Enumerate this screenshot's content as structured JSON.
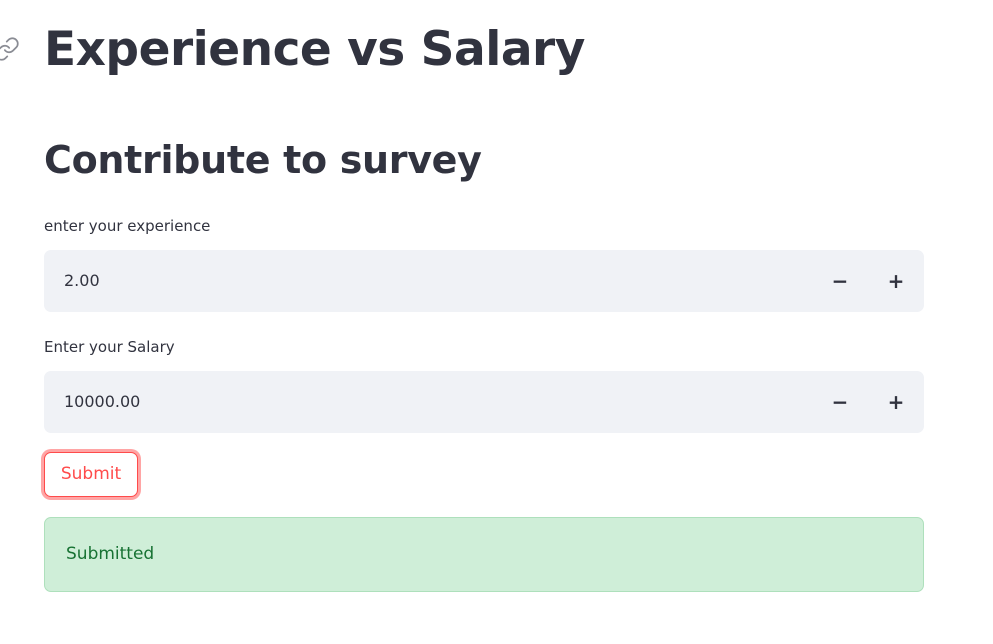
{
  "header": {
    "title": "Experience vs Salary",
    "anchor_icon": "link-icon"
  },
  "form": {
    "subtitle": "Contribute to survey",
    "experience": {
      "label": "enter your experience",
      "value": "2.00",
      "decrement_label": "−",
      "increment_label": "+"
    },
    "salary": {
      "label": "Enter your Salary",
      "value": "10000.00",
      "decrement_label": "−",
      "increment_label": "+"
    },
    "submit_label": "Submit"
  },
  "alert": {
    "text": "Submitted"
  },
  "colors": {
    "text": "#31333f",
    "accent": "#ff4b4b",
    "input_bg": "#f0f2f6",
    "success_bg": "#cfeed8",
    "success_text": "#177233"
  }
}
